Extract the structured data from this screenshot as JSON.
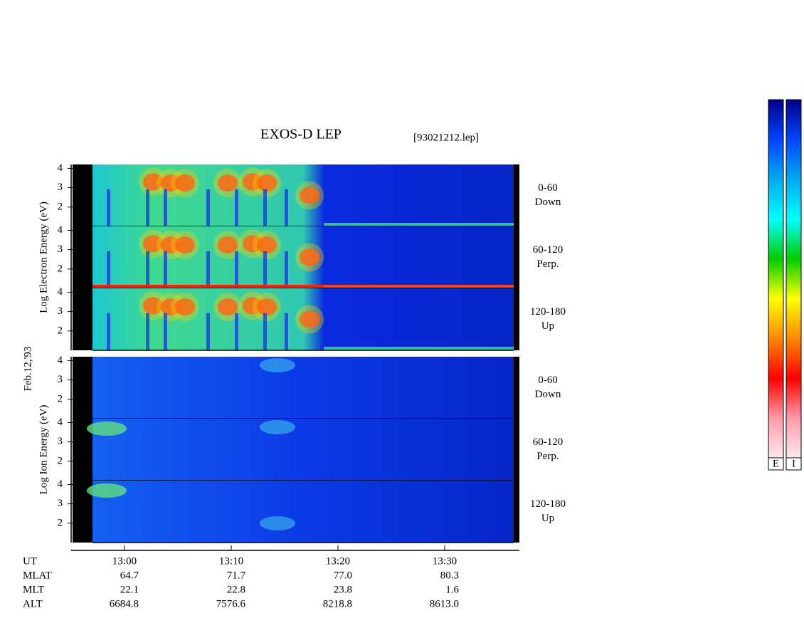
{
  "chart_data": {
    "type": "spectrogram",
    "title": "EXOS-D LEP",
    "file_label": "[93021212.lep]",
    "date_label": "Feb.12,'93",
    "ylim": [
      1,
      4.2
    ],
    "yticks": [
      2,
      3,
      4
    ],
    "xlim": [
      775,
      817
    ],
    "xticks": [
      {
        "value": 780,
        "label": "13:00"
      },
      {
        "value": 790,
        "label": "13:10"
      },
      {
        "value": 800,
        "label": "13:20"
      },
      {
        "value": 810,
        "label": "13:30"
      }
    ],
    "x_row_label": "UT",
    "groups": [
      {
        "species": "electron",
        "ylabel": "Log Electron Energy (eV)",
        "panels": [
          {
            "angle": "0-60",
            "direction": "Down"
          },
          {
            "angle": "60-120",
            "direction": "Perp."
          },
          {
            "angle": "120-180",
            "direction": "Up"
          }
        ]
      },
      {
        "species": "ion",
        "ylabel": "Log Ion Energy (eV)",
        "panels": [
          {
            "angle": "0-60",
            "direction": "Down"
          },
          {
            "angle": "60-120",
            "direction": "Perp."
          },
          {
            "angle": "120-180",
            "direction": "Up"
          }
        ]
      }
    ],
    "ephemeris": [
      {
        "name": "MLAT",
        "values": [
          "64.7",
          "71.7",
          "77.0",
          "80.3"
        ]
      },
      {
        "name": "MLT",
        "values": [
          "22.1",
          "22.8",
          "23.8",
          "1.6"
        ]
      },
      {
        "name": "ALT",
        "values": [
          "6684.8",
          "7576.6",
          "8218.8",
          "8613.0"
        ]
      }
    ],
    "colorbar": {
      "labels": [
        "E",
        "I"
      ],
      "colors": [
        "#ffe8ee",
        "#ff9aa8",
        "#ff0000",
        "#ff8800",
        "#ffff00",
        "#00cc00",
        "#00ffff",
        "#00aaee",
        "#0044ff",
        "#00008a"
      ]
    }
  }
}
